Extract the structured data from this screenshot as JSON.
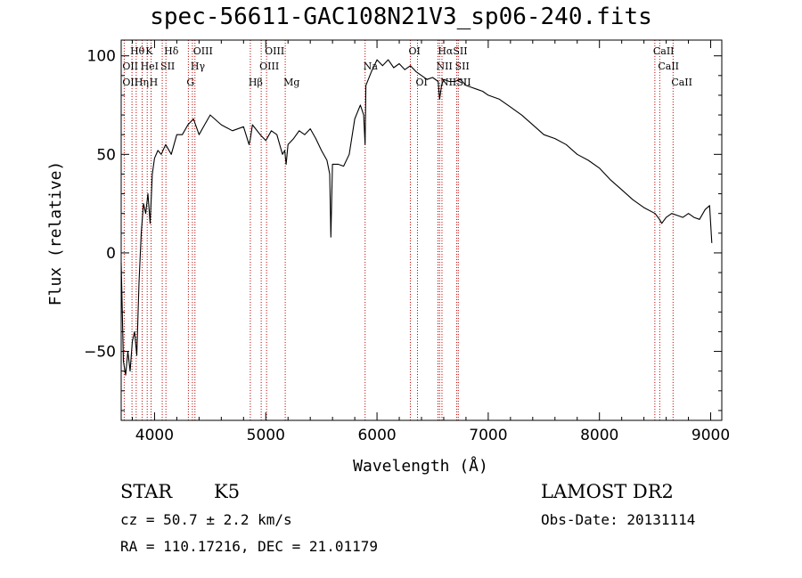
{
  "chart_data": {
    "type": "line",
    "title": "spec-56611-GAC108N21V3_sp06-240.fits",
    "xlabel": "Wavelength (Å)",
    "ylabel": "Flux (relative)",
    "xlim": [
      3700,
      9100
    ],
    "ylim": [
      -85,
      108
    ],
    "xticks": [
      4000,
      5000,
      6000,
      7000,
      8000,
      9000
    ],
    "yticks": [
      -50,
      0,
      50,
      100
    ],
    "grid": false,
    "series": [
      {
        "x": [
          3700,
          3720,
          3740,
          3760,
          3780,
          3800,
          3820,
          3840,
          3860,
          3880,
          3900,
          3920,
          3940,
          3960,
          3980,
          4000,
          4030,
          4060,
          4100,
          4150,
          4200,
          4250,
          4300,
          4350,
          4400,
          4450,
          4500,
          4600,
          4700,
          4800,
          4850,
          4862,
          4880,
          4950,
          5000,
          5050,
          5100,
          5150,
          5170,
          5183,
          5200,
          5250,
          5300,
          5350,
          5400,
          5450,
          5500,
          5550,
          5575,
          5585,
          5600,
          5650,
          5700,
          5750,
          5800,
          5850,
          5880,
          5893,
          5900,
          5950,
          6000,
          6050,
          6100,
          6150,
          6200,
          6250,
          6300,
          6350,
          6400,
          6450,
          6500,
          6550,
          6563,
          6580,
          6600,
          6650,
          6700,
          6750,
          6800,
          6850,
          6900,
          6950,
          7000,
          7100,
          7200,
          7300,
          7400,
          7500,
          7600,
          7700,
          7800,
          7900,
          8000,
          8100,
          8200,
          8300,
          8400,
          8500,
          8540,
          8560,
          8600,
          8650,
          8700,
          8750,
          8800,
          8850,
          8900,
          8950,
          8990,
          9010
        ],
        "y": [
          -5,
          -55,
          -62,
          -50,
          -60,
          -45,
          -40,
          -52,
          -15,
          10,
          25,
          20,
          30,
          15,
          40,
          48,
          52,
          50,
          55,
          50,
          60,
          60,
          65,
          68,
          60,
          65,
          70,
          65,
          62,
          64,
          55,
          58,
          65,
          60,
          57,
          62,
          60,
          50,
          52,
          45,
          55,
          58,
          62,
          60,
          63,
          58,
          52,
          47,
          40,
          8,
          45,
          45,
          44,
          50,
          68,
          75,
          70,
          55,
          85,
          92,
          98,
          95,
          98,
          94,
          96,
          93,
          95,
          92,
          90,
          88,
          89,
          87,
          78,
          85,
          88,
          87,
          87,
          88,
          85,
          84,
          83,
          82,
          80,
          78,
          74,
          70,
          65,
          60,
          58,
          55,
          50,
          47,
          43,
          37,
          32,
          27,
          23,
          20,
          17,
          15,
          18,
          20,
          19,
          18,
          20,
          18,
          17,
          22,
          24,
          5
        ]
      }
    ],
    "lines": [
      {
        "label": "Hθ",
        "x": 3797,
        "row": 0
      },
      {
        "label": "K",
        "x": 3934,
        "row": 0
      },
      {
        "label": "Hδ",
        "x": 4102,
        "row": 0
      },
      {
        "label": "OIII",
        "x": 4363,
        "row": 0
      },
      {
        "label": "OIII",
        "x": 5007,
        "row": 0
      },
      {
        "label": "OI",
        "x": 6300,
        "row": 0
      },
      {
        "label": "HαSII",
        "x": 6563,
        "row": 0
      },
      {
        "label": "CaII",
        "x": 8498,
        "row": 0
      },
      {
        "label": "OII",
        "x": 3727,
        "row": 1
      },
      {
        "label": "HeI",
        "x": 3889,
        "row": 1
      },
      {
        "label": "SII",
        "x": 4069,
        "row": 1
      },
      {
        "label": "Hγ",
        "x": 4340,
        "row": 1
      },
      {
        "label": "OIII",
        "x": 4959,
        "row": 1
      },
      {
        "label": "Na",
        "x": 5893,
        "row": 1
      },
      {
        "label": "NII",
        "x": 6548,
        "row": 1
      },
      {
        "label": "SII",
        "x": 6717,
        "row": 1
      },
      {
        "label": "CaII",
        "x": 8542,
        "row": 1
      },
      {
        "label": "OII",
        "x": 3727,
        "row": 2
      },
      {
        "label": "Hη",
        "x": 3835,
        "row": 2
      },
      {
        "label": "H",
        "x": 3969,
        "row": 2
      },
      {
        "label": "G",
        "x": 4304,
        "row": 2
      },
      {
        "label": "Hβ",
        "x": 4861,
        "row": 2
      },
      {
        "label": "Mg",
        "x": 5175,
        "row": 2
      },
      {
        "label": "OI",
        "x": 6364,
        "row": 2
      },
      {
        "label": "NII",
        "x": 6584,
        "row": 2
      },
      {
        "label": "SII",
        "x": 6731,
        "row": 2
      },
      {
        "label": "CaII",
        "x": 8662,
        "row": 2
      }
    ],
    "line_color": "#c00000"
  },
  "info": {
    "object_class": "STAR",
    "subclass": "K5",
    "survey": "LAMOST DR2",
    "cz": "cz = 50.7 ± 2.2 km/s",
    "obs_date": "Obs-Date: 20131114",
    "coords": "RA = 110.17216, DEC =  21.01179"
  }
}
